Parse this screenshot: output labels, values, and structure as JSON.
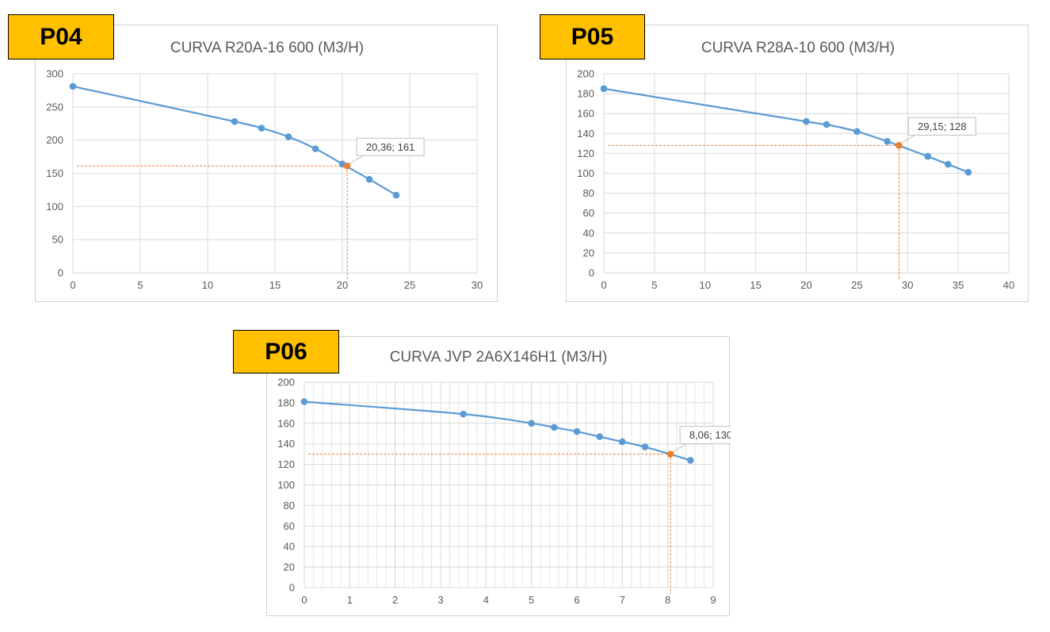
{
  "colors": {
    "series": "#5b9bd5",
    "highlight": "#ed7d31",
    "tag_bg": "#ffc000",
    "grid": "#d9d9d9"
  },
  "tags": [
    "P04",
    "P05",
    "P06"
  ],
  "chart_data": [
    {
      "type": "line",
      "title": "CURVA R20A-16 600 (M3/H)",
      "xlabel": "",
      "ylabel": "",
      "xlim": [
        0,
        30
      ],
      "ylim": [
        0,
        300
      ],
      "xticks": [
        0,
        5,
        10,
        15,
        20,
        25,
        30
      ],
      "yticks": [
        0,
        50,
        100,
        150,
        200,
        250,
        300
      ],
      "x_minor_step": 5,
      "series": [
        {
          "x": [
            0,
            12,
            14,
            16,
            18,
            20,
            22,
            24
          ],
          "y": [
            281,
            228,
            218,
            205,
            187,
            164,
            141,
            117
          ]
        }
      ],
      "highlight": {
        "x": 20.36,
        "y": 161,
        "label": "20,36; 161"
      },
      "grid": true,
      "legend": "none"
    },
    {
      "type": "line",
      "title": "CURVA R28A-10 600 (M3/H)",
      "xlabel": "",
      "ylabel": "",
      "xlim": [
        0,
        40
      ],
      "ylim": [
        0,
        200
      ],
      "xticks": [
        0,
        5,
        10,
        15,
        20,
        25,
        30,
        35,
        40
      ],
      "yticks": [
        0,
        20,
        40,
        60,
        80,
        100,
        120,
        140,
        160,
        180,
        200
      ],
      "x_minor_step": 5,
      "series": [
        {
          "x": [
            0,
            20,
            22,
            25,
            28,
            32,
            34,
            36
          ],
          "y": [
            185,
            152,
            149,
            142,
            132,
            117,
            109,
            101
          ]
        }
      ],
      "highlight": {
        "x": 29.15,
        "y": 128,
        "label": "29,15; 128"
      },
      "grid": true,
      "legend": "none"
    },
    {
      "type": "line",
      "title": "CURVA JVP 2A6X146H1 (M3/H)",
      "xlabel": "",
      "ylabel": "",
      "xlim": [
        0,
        9
      ],
      "ylim": [
        0,
        200
      ],
      "xticks": [
        0,
        1,
        2,
        3,
        4,
        5,
        6,
        7,
        8,
        9
      ],
      "yticks": [
        0,
        20,
        40,
        60,
        80,
        100,
        120,
        140,
        160,
        180,
        200
      ],
      "x_minor_step": 0.2,
      "series": [
        {
          "x": [
            0,
            3.5,
            5,
            5.5,
            6,
            6.5,
            7,
            7.5,
            8.5
          ],
          "y": [
            181,
            169,
            160,
            156,
            152,
            147,
            142,
            137,
            124
          ]
        }
      ],
      "highlight": {
        "x": 8.06,
        "y": 130,
        "label": "8,06; 130"
      },
      "grid": true,
      "legend": "none"
    }
  ]
}
